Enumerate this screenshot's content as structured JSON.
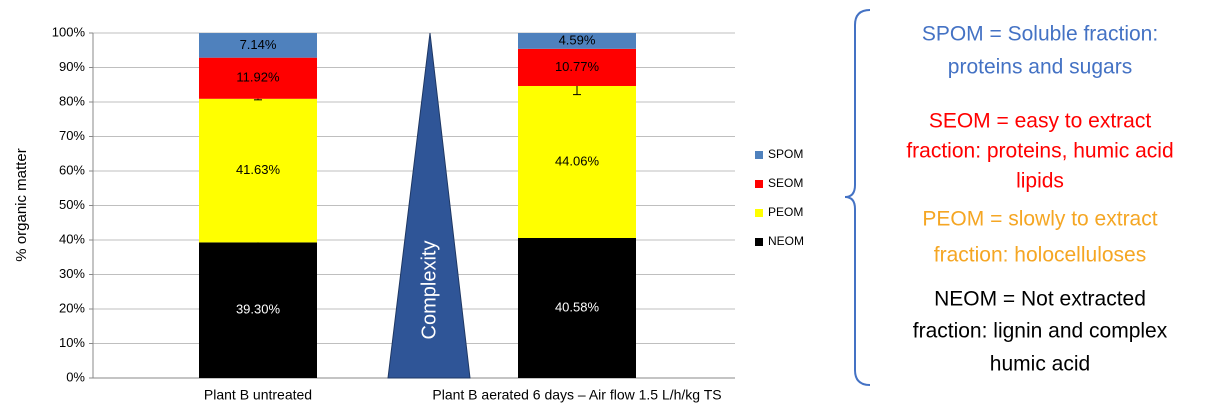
{
  "chart_data": {
    "type": "stacked_bar",
    "ylabel": "% organic matter",
    "categories": [
      "Plant B untreated",
      "Plant B aerated 6 days – Air flow 1.5 L/h/kg TS"
    ],
    "series": [
      {
        "name": "NEOM",
        "color": "#000000",
        "values": [
          39.3,
          40.58
        ],
        "value_labels": [
          "39.30%",
          "40.58%"
        ],
        "errors": [
          0.3,
          2.5
        ]
      },
      {
        "name": "PEOM",
        "color": "#ffff00",
        "values": [
          41.63,
          44.06
        ],
        "value_labels": [
          "41.63%",
          "44.06%"
        ],
        "errors": [
          0.3,
          2.5
        ]
      },
      {
        "name": "SEOM",
        "color": "#ff0000",
        "values": [
          11.92,
          10.77
        ],
        "value_labels": [
          "11.92%",
          "10.77%"
        ]
      },
      {
        "name": "SPOM",
        "color": "#4f81bd",
        "values": [
          7.14,
          4.59
        ],
        "value_labels": [
          "7.14%",
          "4.59%"
        ]
      }
    ],
    "ylim": [
      0,
      100
    ],
    "yticks": [
      {
        "value": 0,
        "label": "0%"
      },
      {
        "value": 10,
        "label": "10%"
      },
      {
        "value": 20,
        "label": "20%"
      },
      {
        "value": 30,
        "label": "30%"
      },
      {
        "value": 40,
        "label": "40%"
      },
      {
        "value": 50,
        "label": "50%"
      },
      {
        "value": 60,
        "label": "60%"
      },
      {
        "value": 70,
        "label": "70%"
      },
      {
        "value": 80,
        "label": "80%"
      },
      {
        "value": 90,
        "label": "90%"
      },
      {
        "value": 100,
        "label": "100%"
      }
    ],
    "grid": true,
    "arrow_label": "Complexity",
    "annotations": [
      {
        "color": "#4472c4",
        "lines": [
          "SPOM = Soluble fraction:",
          "proteins and sugars"
        ]
      },
      {
        "color": "#ff0000",
        "lines": [
          "SEOM = easy to extract",
          "fraction: proteins, humic acid",
          "lipids"
        ]
      },
      {
        "color": "#f5a623",
        "lines": [
          "PEOM = slowly to extract",
          "fraction: holocelluloses"
        ]
      },
      {
        "color": "#000000",
        "lines": [
          "NEOM = Not extracted",
          "fraction: lignin and complex",
          "humic acid"
        ]
      }
    ]
  }
}
